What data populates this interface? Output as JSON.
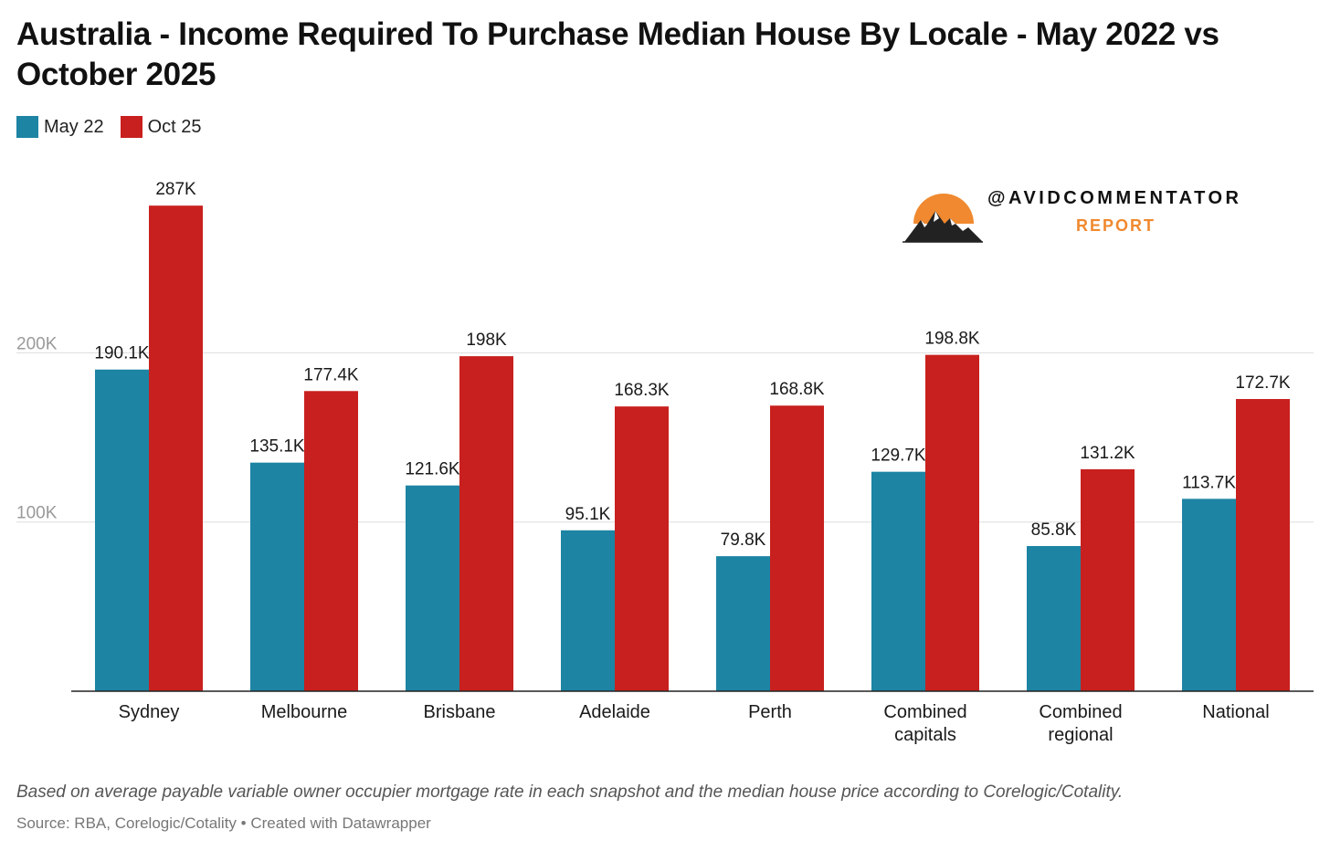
{
  "title": "Australia - Income Required To Purchase Median House By Locale - May 2022 vs October 2025",
  "legend": [
    {
      "label": "May 22",
      "color": "#1d84a3"
    },
    {
      "label": "Oct 25",
      "color": "#c8201e"
    }
  ],
  "brand": {
    "handle": "@AVIDCOMMENTATOR",
    "report": "REPORT",
    "icon": "sun-mountain-logo-icon"
  },
  "notes": "Based on average payable variable owner occupier mortgage rate in each snapshot and the median house price according to Corelogic/Cotality.",
  "source": "Source: RBA, Corelogic/Cotality • Created with Datawrapper",
  "chart_data": {
    "type": "bar",
    "categories": [
      [
        "Sydney"
      ],
      [
        "Melbourne"
      ],
      [
        "Brisbane"
      ],
      [
        "Adelaide"
      ],
      [
        "Perth"
      ],
      [
        "Combined",
        "capitals"
      ],
      [
        "Combined",
        "regional"
      ],
      [
        "National"
      ]
    ],
    "series": [
      {
        "name": "May 22",
        "color": "#1d84a3",
        "values": [
          190.1,
          135.1,
          121.6,
          95.1,
          79.8,
          129.7,
          85.8,
          113.7
        ],
        "labels": [
          "190.1K",
          "135.1K",
          "121.6K",
          "95.1K",
          "79.8K",
          "129.7K",
          "85.8K",
          "113.7K"
        ]
      },
      {
        "name": "Oct 25",
        "color": "#c8201e",
        "values": [
          287,
          177.4,
          198,
          168.3,
          168.8,
          198.8,
          131.2,
          172.7
        ],
        "labels": [
          "287K",
          "177.4K",
          "198K",
          "168.3K",
          "168.8K",
          "198.8K",
          "131.2K",
          "172.7K"
        ]
      }
    ],
    "yticks": [
      {
        "value": 100,
        "label": "100K"
      },
      {
        "value": 200,
        "label": "200K"
      }
    ],
    "ylim": [
      0,
      300
    ],
    "grid": true,
    "legend_position": "top-left"
  }
}
